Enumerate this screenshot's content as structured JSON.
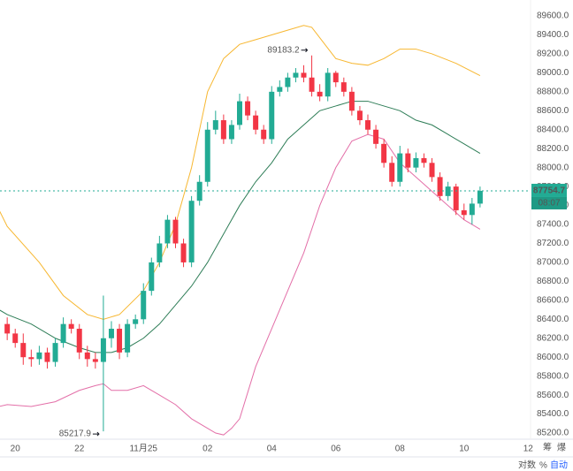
{
  "chart_data": {
    "type": "candlestick",
    "x": [
      -1,
      0,
      1,
      2,
      3,
      4,
      5,
      6,
      7,
      8,
      9,
      10,
      11,
      12,
      13,
      14,
      15,
      16,
      17,
      18,
      19,
      20,
      21,
      22,
      23,
      24,
      25,
      26,
      27,
      28,
      29,
      30,
      31,
      32,
      33,
      34,
      35,
      36,
      37,
      38,
      39,
      40,
      41,
      42,
      43,
      44,
      45,
      46,
      47,
      48,
      49,
      50,
      51,
      52,
      53,
      54,
      55,
      56,
      57,
      58
    ],
    "open": [
      86350,
      86250,
      86150,
      86000,
      85980,
      86050,
      85950,
      86150,
      86350,
      86300,
      86050,
      85980,
      85950,
      86200,
      86300,
      86050,
      86350,
      86400,
      86700,
      87000,
      87200,
      87450,
      87200,
      87000,
      87650,
      87850,
      88400,
      88500,
      88300,
      88450,
      88700,
      88550,
      88400,
      88300,
      88800,
      88850,
      88950,
      89000,
      88950,
      88800,
      88750,
      89000,
      88900,
      88800,
      88600,
      88500,
      88400,
      88250,
      88050,
      87850,
      88150,
      88000,
      88100,
      88050,
      87900,
      87700,
      87800,
      87550,
      87500,
      87620
    ],
    "high": [
      86420,
      86300,
      86250,
      86080,
      86120,
      86100,
      86200,
      86420,
      86400,
      86350,
      86120,
      86050,
      86650,
      86380,
      86350,
      86400,
      86450,
      86780,
      87050,
      87280,
      87500,
      87480,
      87250,
      87700,
      87920,
      88480,
      88600,
      88560,
      88500,
      88780,
      88750,
      88600,
      88450,
      88860,
      88920,
      89000,
      89050,
      89080,
      89183.2,
      88880,
      89050,
      89020,
      88950,
      88850,
      88650,
      88560,
      88450,
      88300,
      88120,
      88230,
      88200,
      88160,
      88150,
      88100,
      87950,
      87850,
      87830,
      87620,
      87680,
      87800
    ],
    "low": [
      86180,
      86100,
      85920,
      85900,
      85920,
      85880,
      85900,
      86100,
      86250,
      85980,
      85900,
      85880,
      85217.9,
      86100,
      85980,
      86000,
      86300,
      86350,
      86650,
      86950,
      87150,
      87150,
      86950,
      86950,
      87600,
      87800,
      88350,
      88250,
      88250,
      88400,
      88500,
      88350,
      88250,
      88250,
      88750,
      88800,
      88900,
      88900,
      88750,
      88700,
      88700,
      88850,
      88750,
      88550,
      88450,
      88350,
      88200,
      88000,
      87800,
      87800,
      87950,
      87950,
      88000,
      87850,
      87650,
      87650,
      87500,
      87450,
      87400,
      87580
    ],
    "close": [
      86250,
      86150,
      86000,
      85980,
      86050,
      85950,
      86150,
      86350,
      86300,
      86050,
      85980,
      85950,
      86200,
      86300,
      86050,
      86350,
      86400,
      86700,
      87000,
      87200,
      87450,
      87200,
      87000,
      87650,
      87850,
      88400,
      88500,
      88300,
      88450,
      88700,
      88550,
      88400,
      88300,
      88800,
      88850,
      88950,
      89000,
      88950,
      88800,
      88750,
      89000,
      88900,
      88800,
      88600,
      88500,
      88400,
      88250,
      88050,
      87850,
      88150,
      88000,
      88100,
      88050,
      87900,
      87700,
      87800,
      87550,
      87500,
      87620,
      87754.7
    ],
    "up_color": "#22ab94",
    "down_color": "#f23645",
    "bands": [
      {
        "color": "#f7b731",
        "x": [
          -2,
          -1,
          3,
          6,
          9,
          11,
          13,
          16,
          18,
          20,
          22,
          24,
          26,
          28,
          30,
          32,
          34,
          36,
          37,
          40,
          42,
          44,
          46,
          48,
          50,
          52,
          55,
          58
        ],
        "values": [
          87550,
          87380,
          87000,
          86650,
          86450,
          86400,
          86450,
          86700,
          87000,
          87400,
          88000,
          88800,
          89150,
          89300,
          89350,
          89400,
          89450,
          89500,
          89480,
          89150,
          89100,
          89080,
          89150,
          89250,
          89250,
          89200,
          89100,
          88970
        ]
      },
      {
        "color": "#2e7d57",
        "x": [
          -2,
          -1,
          2,
          5,
          8,
          10,
          12,
          14,
          16,
          18,
          20,
          22,
          24,
          26,
          28,
          30,
          32,
          34,
          36,
          38,
          40,
          42,
          44,
          46,
          48,
          50,
          52,
          54,
          56,
          58
        ],
        "values": [
          86500,
          86450,
          86350,
          86200,
          86100,
          86050,
          86050,
          86100,
          86200,
          86350,
          86550,
          86750,
          87000,
          87300,
          87600,
          87850,
          88050,
          88300,
          88450,
          88600,
          88650,
          88700,
          88700,
          88650,
          88600,
          88500,
          88450,
          88350,
          88250,
          88150
        ]
      },
      {
        "color": "#e36fa8",
        "x": [
          -2,
          -1,
          2,
          5,
          8,
          10,
          11,
          12,
          14,
          16,
          18,
          20,
          22,
          24,
          25,
          26,
          27,
          28,
          30,
          32,
          34,
          36,
          38,
          40,
          42,
          44,
          46,
          48,
          50,
          52,
          54,
          56,
          58
        ],
        "values": [
          85480,
          85500,
          85480,
          85530,
          85650,
          85700,
          85720,
          85650,
          85650,
          85700,
          85600,
          85500,
          85350,
          85250,
          85200,
          85180,
          85250,
          85350,
          85900,
          86300,
          86700,
          87100,
          87600,
          88000,
          88280,
          88350,
          88300,
          88050,
          87900,
          87750,
          87600,
          87450,
          87350
        ]
      }
    ],
    "xlim": [
      -1.9,
      64.3
    ],
    "ylim": [
      85135,
      89768
    ],
    "xticks": [
      {
        "value": 0,
        "label": "20"
      },
      {
        "value": 8,
        "label": "22"
      },
      {
        "value": 16,
        "label": "11月25"
      },
      {
        "value": 24,
        "label": "02"
      },
      {
        "value": 32,
        "label": "04"
      },
      {
        "value": 40,
        "label": "06"
      },
      {
        "value": 48,
        "label": "08"
      },
      {
        "value": 56,
        "label": "10"
      },
      {
        "value": 64,
        "label": "12"
      }
    ],
    "yticks": [
      {
        "value": 85200,
        "label": "85200.0"
      },
      {
        "value": 85400,
        "label": "85400.0"
      },
      {
        "value": 85600,
        "label": "85600.0"
      },
      {
        "value": 85800,
        "label": "85800.0"
      },
      {
        "value": 86000,
        "label": "86000.0"
      },
      {
        "value": 86200,
        "label": "86200.0"
      },
      {
        "value": 86400,
        "label": "86400.0"
      },
      {
        "value": 86600,
        "label": "86600.0"
      },
      {
        "value": 86800,
        "label": "86800.0"
      },
      {
        "value": 87000,
        "label": "87000.0"
      },
      {
        "value": 87200,
        "label": "87200.0"
      },
      {
        "value": 87400,
        "label": "87400.0"
      },
      {
        "value": 87600,
        "label": "87600.0"
      },
      {
        "value": 87800,
        "label": "87800.0"
      },
      {
        "value": 88000,
        "label": "88000.0"
      },
      {
        "value": 88200,
        "label": "88200.0"
      },
      {
        "value": 88400,
        "label": "88400.0"
      },
      {
        "value": 88600,
        "label": "88600.0"
      },
      {
        "value": 88800,
        "label": "88800.0"
      },
      {
        "value": 89000,
        "label": "89000.0"
      },
      {
        "value": 89200,
        "label": "89200.0"
      },
      {
        "value": 89400,
        "label": "89400.0"
      },
      {
        "value": 89600,
        "label": "89600.0"
      }
    ],
    "countdown": "08:07",
    "toolbar": [
      "对数",
      "%",
      "自动"
    ],
    "corner": [
      "筹",
      "爆"
    ]
  }
}
